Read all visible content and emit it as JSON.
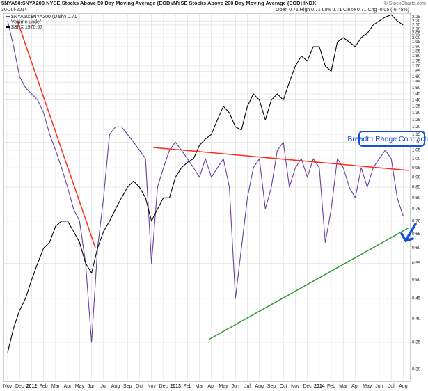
{
  "chart_data": {
    "type": "line",
    "title": "$NYA50:$NYA200 NYSE Stocks Above 50 Day Moving Average (EOD)/NYSE Stocks Above 200 Day Moving Average (EOD) INDX",
    "date": "30-Jul-2014",
    "quote": "Open 0.71 High 0.71 Low 0.71 Close 0.71 Chg -0.05 (-6.75%)",
    "source": "© StockCharts.com",
    "volume_note": "Volume undef",
    "annotation": "Breadth Range Contracting",
    "log_scale": true,
    "grid": true,
    "legend": "top-left",
    "categories": [
      "Nov",
      null,
      "Dec",
      null,
      "2012",
      null,
      "Feb",
      null,
      "Mar",
      null,
      "Apr",
      null,
      "May",
      null,
      "Jun",
      null,
      "Jul",
      null,
      "Aug",
      null,
      "Sep",
      null,
      "Oct",
      null,
      "Nov",
      null,
      "Dec",
      null,
      "2013",
      null,
      "Feb",
      null,
      "Mar",
      null,
      "Apr",
      null,
      "May",
      null,
      "Jun",
      null,
      "Jul",
      null,
      "Aug",
      null,
      "Sep",
      null,
      "Oct",
      null,
      "Nov",
      null,
      "Dec",
      null,
      "2014",
      null,
      "Feb",
      null,
      "Mar",
      null,
      "Apr",
      null,
      "May",
      null,
      "Jun",
      null,
      "Jul",
      null,
      "Aug"
    ],
    "series": [
      {
        "name": "$NYA50:$NYA200 (Daily) 0.71",
        "color": "#6a3fa0",
        "values": [
          2.2,
          1.9,
          1.6,
          1.5,
          1.45,
          1.4,
          1.3,
          1.15,
          1.05,
          0.95,
          0.85,
          0.75,
          0.7,
          0.55,
          0.35,
          0.6,
          0.8,
          1.15,
          1.2,
          1.2,
          1.15,
          1.1,
          1.05,
          1.0,
          0.55,
          0.85,
          0.95,
          1.05,
          1.1,
          1.05,
          1.0,
          0.95,
          0.9,
          1.0,
          0.9,
          0.95,
          1.0,
          0.85,
          0.45,
          0.6,
          0.8,
          0.95,
          1.0,
          0.75,
          0.85,
          1.05,
          1.1,
          0.85,
          0.95,
          1.0,
          0.9,
          1.0,
          0.95,
          0.62,
          0.75,
          1.0,
          0.95,
          0.85,
          0.8,
          0.95,
          0.85,
          0.95,
          1.0,
          1.05,
          1.0,
          0.8,
          0.72
        ]
      },
      {
        "name": "$SPX 1970.07",
        "color": "#000000",
        "values": [
          0.33,
          0.38,
          0.42,
          0.45,
          0.5,
          0.55,
          0.6,
          0.62,
          0.68,
          0.7,
          0.7,
          0.66,
          0.62,
          0.55,
          0.52,
          0.6,
          0.66,
          0.7,
          0.75,
          0.8,
          0.85,
          0.88,
          0.85,
          0.8,
          0.7,
          0.75,
          0.8,
          0.8,
          0.9,
          0.95,
          0.98,
          1.0,
          1.08,
          1.12,
          1.15,
          1.25,
          1.35,
          1.3,
          1.2,
          1.18,
          1.35,
          1.45,
          1.4,
          1.25,
          1.4,
          1.45,
          1.4,
          1.55,
          1.7,
          1.8,
          1.75,
          1.9,
          1.9,
          1.7,
          1.65,
          1.95,
          2.0,
          1.95,
          1.9,
          2.0,
          2.05,
          2.15,
          2.2,
          2.25,
          2.28,
          2.2,
          2.15
        ]
      }
    ],
    "ylim": [
      0.28,
      2.3
    ],
    "yticks": [
      {
        "value": 0.3,
        "label": "0.30"
      },
      0.35,
      {
        "value": 0.4,
        "label": "0.40"
      },
      0.45,
      {
        "value": 0.5,
        "label": "0.50"
      },
      0.55,
      {
        "value": 0.6,
        "label": "0.60"
      },
      0.65,
      {
        "value": 0.7,
        "label": "0.70"
      },
      0.75,
      {
        "value": 0.8,
        "label": "0.80"
      },
      0.85,
      {
        "value": 0.9,
        "label": "0.90"
      },
      0.95,
      {
        "value": 1.0,
        "label": "1.00"
      },
      1.05,
      {
        "value": 1.1,
        "label": "1.10"
      },
      1.15,
      {
        "value": 1.2,
        "label": "1.20"
      },
      1.25,
      {
        "value": 1.3,
        "label": "1.30"
      },
      1.35,
      {
        "value": 1.4,
        "label": "1.40"
      },
      1.45,
      {
        "value": 1.5,
        "label": "1.50"
      },
      1.55,
      {
        "value": 1.6,
        "label": "1.60"
      },
      1.65,
      {
        "value": 1.7,
        "label": "1.70"
      },
      1.75,
      {
        "value": 1.8,
        "label": "1.80"
      },
      1.85,
      {
        "value": 1.9,
        "label": "1.90"
      },
      1.95,
      {
        "value": 2.0,
        "label": "2.00"
      },
      2.05,
      {
        "value": 2.1,
        "label": "2.10"
      },
      2.15,
      {
        "value": 2.2,
        "label": "2.20"
      },
      2.25
    ]
  }
}
